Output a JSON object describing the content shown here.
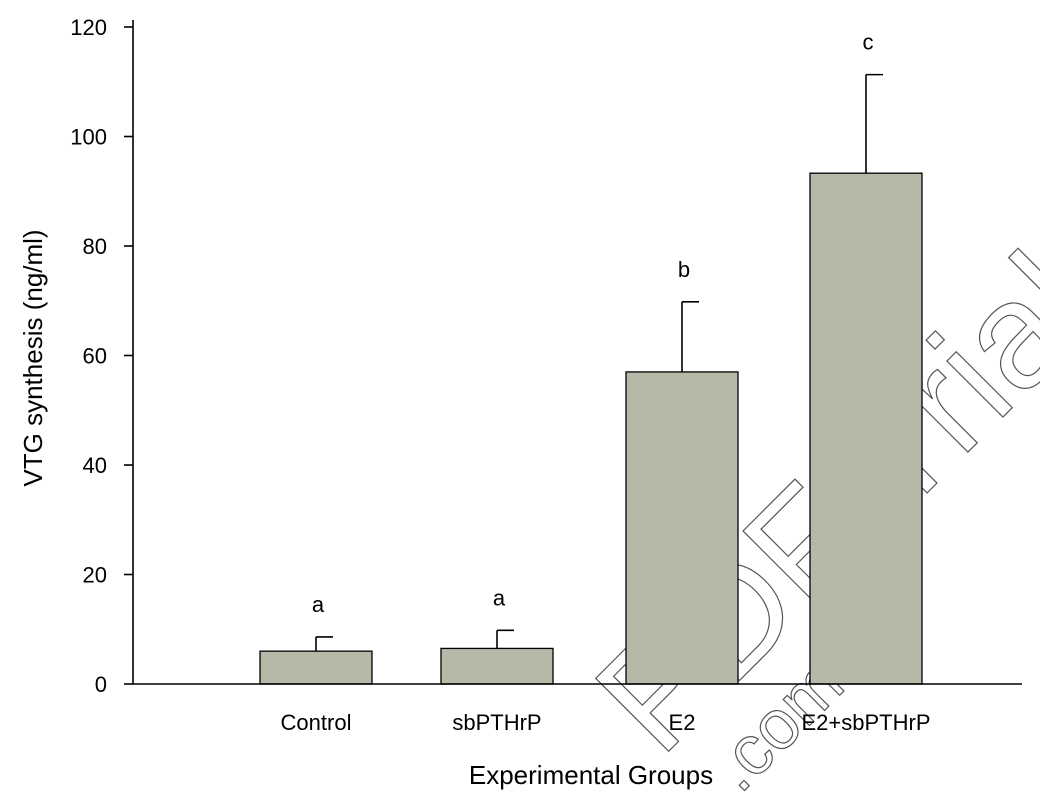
{
  "chart_data": {
    "type": "bar",
    "title": "",
    "xlabel": "Experimental Groups",
    "ylabel": "VTG synthesis (ng/ml)",
    "ylim": [
      0,
      120
    ],
    "yticks": [
      0,
      20,
      40,
      60,
      80,
      100,
      120
    ],
    "categories": [
      "Control",
      "sbPTHrP",
      "E2",
      "E2+sbPTHrP"
    ],
    "values": [
      6,
      6.5,
      57,
      93.3
    ],
    "errors": [
      2.6,
      3.3,
      12.8,
      18
    ],
    "significance_labels": [
      "a",
      "a",
      "b",
      "c"
    ],
    "bar_color": "#b8b8a8",
    "grid": false,
    "legend": "none"
  },
  "watermark": {
    "text": "PDF Trial",
    "subtext": ".com"
  }
}
